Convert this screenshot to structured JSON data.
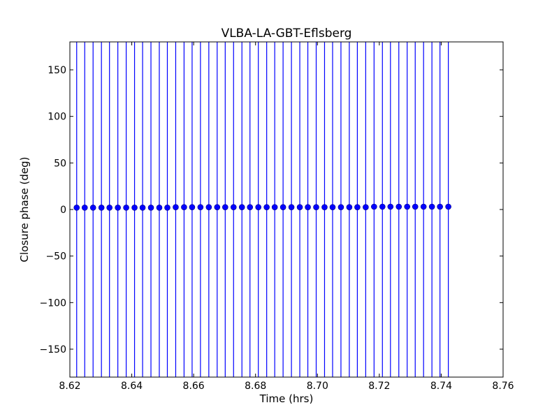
{
  "chart_data": {
    "type": "scatter",
    "title": "VLBA-LA-GBT-Eflsberg",
    "xlabel": "Time (hrs)",
    "ylabel": "Closure phase (deg)",
    "xlim": [
      8.62,
      8.76
    ],
    "ylim": [
      -180,
      180
    ],
    "xticks": [
      8.62,
      8.64,
      8.66,
      8.68,
      8.7,
      8.72,
      8.74,
      8.76
    ],
    "xtick_labels": [
      "8.62",
      "8.64",
      "8.66",
      "8.68",
      "8.70",
      "8.72",
      "8.74",
      "8.76"
    ],
    "yticks": [
      150,
      100,
      50,
      0,
      -50,
      -100,
      -150
    ],
    "ytick_labels": [
      "150",
      "100",
      "50",
      "0",
      "−50",
      "−100",
      "−150"
    ],
    "grid": false,
    "color": "#0000ff",
    "error_bars": "full range",
    "x": [
      8.6222,
      8.6248,
      8.6275,
      8.6302,
      8.6328,
      8.6355,
      8.6382,
      8.6409,
      8.6435,
      8.6462,
      8.6489,
      8.6515,
      8.6542,
      8.6569,
      8.6595,
      8.6622,
      8.6649,
      8.6676,
      8.6702,
      8.6729,
      8.6756,
      8.6782,
      8.6809,
      8.6836,
      8.6862,
      8.6889,
      8.6916,
      8.6943,
      8.6969,
      8.6996,
      8.7023,
      8.7049,
      8.7076,
      8.7103,
      8.7129,
      8.7156,
      8.7183,
      8.721,
      8.7236,
      8.7263,
      8.729,
      8.7316,
      8.7343,
      8.737,
      8.7396,
      8.7423
    ],
    "y": [
      2,
      2,
      2,
      2,
      2,
      2,
      2,
      2,
      2,
      2,
      2,
      2,
      2.5,
      2.5,
      2.5,
      2.5,
      2.5,
      2.5,
      2.5,
      2.5,
      2.5,
      2.5,
      2.5,
      2.5,
      2.5,
      2.5,
      2.5,
      2.5,
      2.5,
      2.5,
      2.5,
      2.5,
      2.5,
      2.5,
      2.5,
      2.5,
      3,
      3,
      3,
      3,
      3,
      3,
      3,
      3,
      3,
      3
    ]
  }
}
